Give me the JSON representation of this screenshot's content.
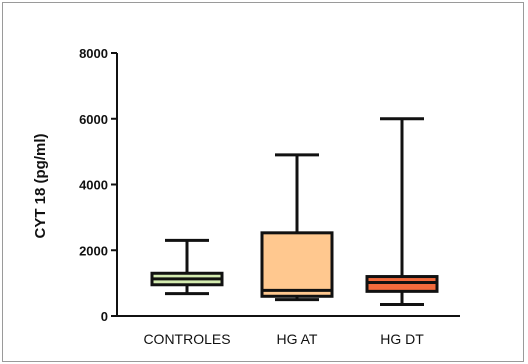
{
  "chart_data": {
    "type": "box",
    "ylabel": "CYT 18 (pg/ml)",
    "xlabel": "",
    "ylim": [
      0,
      8000
    ],
    "yticks": [
      0,
      2000,
      4000,
      6000,
      8000
    ],
    "ytick_labels": [
      "0",
      "2000",
      "4000",
      "6000",
      "8000"
    ],
    "categories": [
      "CONTROLES",
      "HG AT",
      "HG DT"
    ],
    "boxes": [
      {
        "category": "CONTROLES",
        "min": 680,
        "q1": 950,
        "median": 1130,
        "q3": 1300,
        "max": 2300,
        "color": "#d4ecb0"
      },
      {
        "category": "HG AT",
        "min": 500,
        "q1": 600,
        "median": 780,
        "q3": 2530,
        "max": 4900,
        "color": "#ffc88f"
      },
      {
        "category": "HG DT",
        "min": 350,
        "q1": 750,
        "median": 1020,
        "q3": 1200,
        "max": 6000,
        "color": "#f26a3c"
      }
    ],
    "grid": false
  }
}
